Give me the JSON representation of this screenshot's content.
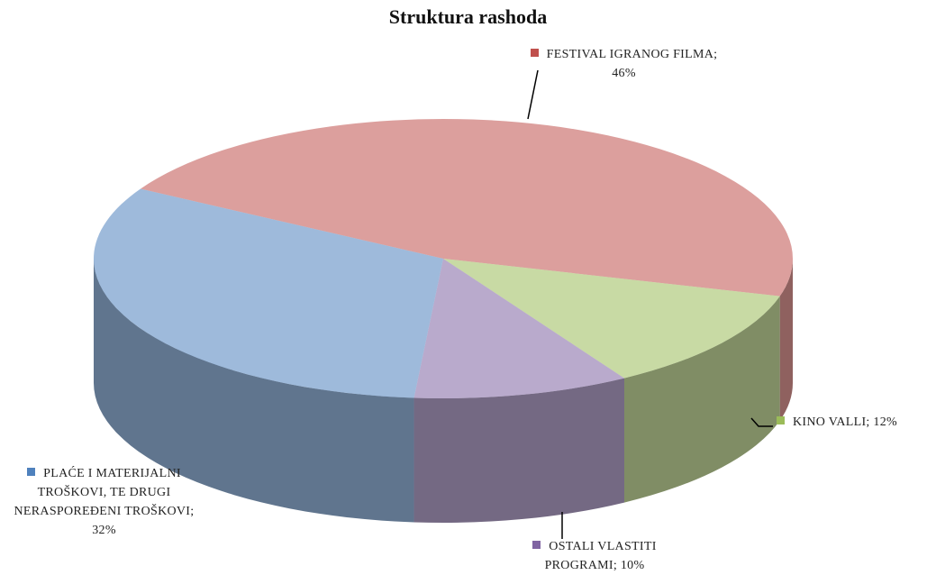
{
  "chart_data": {
    "type": "pie",
    "title": "Struktura rashoda",
    "categories": [
      "FESTIVAL IGRANOG FILMA",
      "KINO VALLI",
      "OSTALI VLASTITI PROGRAMI",
      "PLAĆE I MATERIJALNI TROŠKOVI, TE DRUGI NERASPOREĐENI TROŠKOVI"
    ],
    "values": [
      46,
      12,
      10,
      32
    ],
    "value_labels": [
      "46%",
      "12%",
      "10%",
      "32%"
    ],
    "label_separator": "; ",
    "colors": [
      "#c0504d",
      "#9bbb59",
      "#8064a2",
      "#4f81bd"
    ]
  }
}
